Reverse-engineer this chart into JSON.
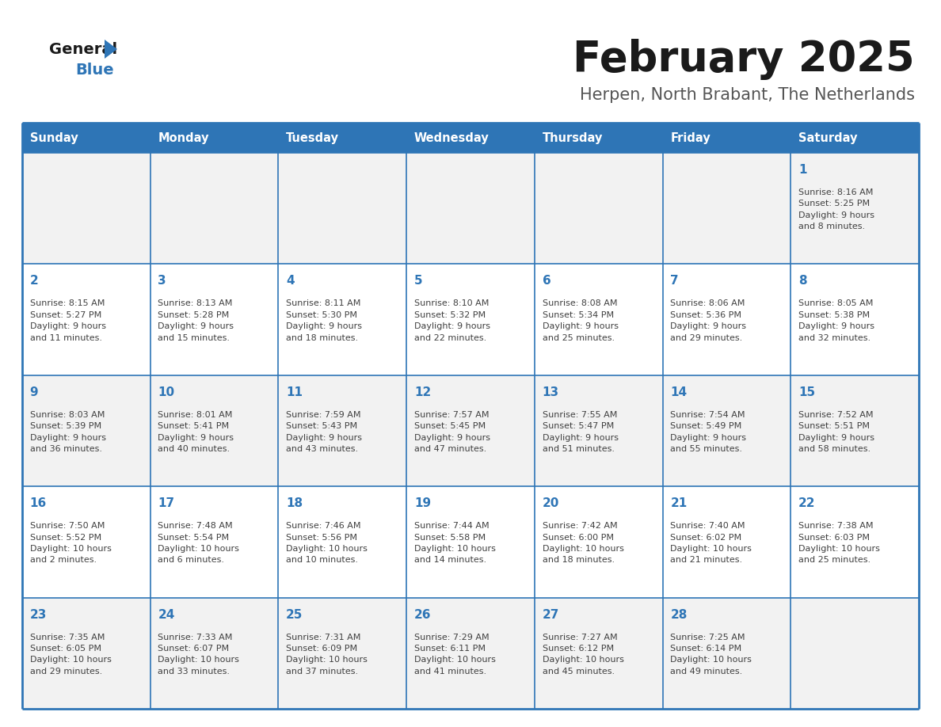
{
  "title": "February 2025",
  "subtitle": "Herpen, North Brabant, The Netherlands",
  "days_of_week": [
    "Sunday",
    "Monday",
    "Tuesday",
    "Wednesday",
    "Thursday",
    "Friday",
    "Saturday"
  ],
  "header_bg": "#2E75B6",
  "header_text": "#FFFFFF",
  "row_bg": [
    "#F2F2F2",
    "#FFFFFF",
    "#F2F2F2",
    "#FFFFFF",
    "#F2F2F2"
  ],
  "cell_text_color": "#404040",
  "day_number_color": "#2E75B6",
  "title_color": "#1a1a1a",
  "subtitle_color": "#555555",
  "logo_general_color": "#1a1a1a",
  "logo_blue_color": "#2E75B6",
  "border_color": "#2E75B6",
  "calendar_data": [
    [
      {
        "day": "",
        "info": ""
      },
      {
        "day": "",
        "info": ""
      },
      {
        "day": "",
        "info": ""
      },
      {
        "day": "",
        "info": ""
      },
      {
        "day": "",
        "info": ""
      },
      {
        "day": "",
        "info": ""
      },
      {
        "day": "1",
        "info": "Sunrise: 8:16 AM\nSunset: 5:25 PM\nDaylight: 9 hours\nand 8 minutes."
      }
    ],
    [
      {
        "day": "2",
        "info": "Sunrise: 8:15 AM\nSunset: 5:27 PM\nDaylight: 9 hours\nand 11 minutes."
      },
      {
        "day": "3",
        "info": "Sunrise: 8:13 AM\nSunset: 5:28 PM\nDaylight: 9 hours\nand 15 minutes."
      },
      {
        "day": "4",
        "info": "Sunrise: 8:11 AM\nSunset: 5:30 PM\nDaylight: 9 hours\nand 18 minutes."
      },
      {
        "day": "5",
        "info": "Sunrise: 8:10 AM\nSunset: 5:32 PM\nDaylight: 9 hours\nand 22 minutes."
      },
      {
        "day": "6",
        "info": "Sunrise: 8:08 AM\nSunset: 5:34 PM\nDaylight: 9 hours\nand 25 minutes."
      },
      {
        "day": "7",
        "info": "Sunrise: 8:06 AM\nSunset: 5:36 PM\nDaylight: 9 hours\nand 29 minutes."
      },
      {
        "day": "8",
        "info": "Sunrise: 8:05 AM\nSunset: 5:38 PM\nDaylight: 9 hours\nand 32 minutes."
      }
    ],
    [
      {
        "day": "9",
        "info": "Sunrise: 8:03 AM\nSunset: 5:39 PM\nDaylight: 9 hours\nand 36 minutes."
      },
      {
        "day": "10",
        "info": "Sunrise: 8:01 AM\nSunset: 5:41 PM\nDaylight: 9 hours\nand 40 minutes."
      },
      {
        "day": "11",
        "info": "Sunrise: 7:59 AM\nSunset: 5:43 PM\nDaylight: 9 hours\nand 43 minutes."
      },
      {
        "day": "12",
        "info": "Sunrise: 7:57 AM\nSunset: 5:45 PM\nDaylight: 9 hours\nand 47 minutes."
      },
      {
        "day": "13",
        "info": "Sunrise: 7:55 AM\nSunset: 5:47 PM\nDaylight: 9 hours\nand 51 minutes."
      },
      {
        "day": "14",
        "info": "Sunrise: 7:54 AM\nSunset: 5:49 PM\nDaylight: 9 hours\nand 55 minutes."
      },
      {
        "day": "15",
        "info": "Sunrise: 7:52 AM\nSunset: 5:51 PM\nDaylight: 9 hours\nand 58 minutes."
      }
    ],
    [
      {
        "day": "16",
        "info": "Sunrise: 7:50 AM\nSunset: 5:52 PM\nDaylight: 10 hours\nand 2 minutes."
      },
      {
        "day": "17",
        "info": "Sunrise: 7:48 AM\nSunset: 5:54 PM\nDaylight: 10 hours\nand 6 minutes."
      },
      {
        "day": "18",
        "info": "Sunrise: 7:46 AM\nSunset: 5:56 PM\nDaylight: 10 hours\nand 10 minutes."
      },
      {
        "day": "19",
        "info": "Sunrise: 7:44 AM\nSunset: 5:58 PM\nDaylight: 10 hours\nand 14 minutes."
      },
      {
        "day": "20",
        "info": "Sunrise: 7:42 AM\nSunset: 6:00 PM\nDaylight: 10 hours\nand 18 minutes."
      },
      {
        "day": "21",
        "info": "Sunrise: 7:40 AM\nSunset: 6:02 PM\nDaylight: 10 hours\nand 21 minutes."
      },
      {
        "day": "22",
        "info": "Sunrise: 7:38 AM\nSunset: 6:03 PM\nDaylight: 10 hours\nand 25 minutes."
      }
    ],
    [
      {
        "day": "23",
        "info": "Sunrise: 7:35 AM\nSunset: 6:05 PM\nDaylight: 10 hours\nand 29 minutes."
      },
      {
        "day": "24",
        "info": "Sunrise: 7:33 AM\nSunset: 6:07 PM\nDaylight: 10 hours\nand 33 minutes."
      },
      {
        "day": "25",
        "info": "Sunrise: 7:31 AM\nSunset: 6:09 PM\nDaylight: 10 hours\nand 37 minutes."
      },
      {
        "day": "26",
        "info": "Sunrise: 7:29 AM\nSunset: 6:11 PM\nDaylight: 10 hours\nand 41 minutes."
      },
      {
        "day": "27",
        "info": "Sunrise: 7:27 AM\nSunset: 6:12 PM\nDaylight: 10 hours\nand 45 minutes."
      },
      {
        "day": "28",
        "info": "Sunrise: 7:25 AM\nSunset: 6:14 PM\nDaylight: 10 hours\nand 49 minutes."
      },
      {
        "day": "",
        "info": ""
      }
    ]
  ]
}
